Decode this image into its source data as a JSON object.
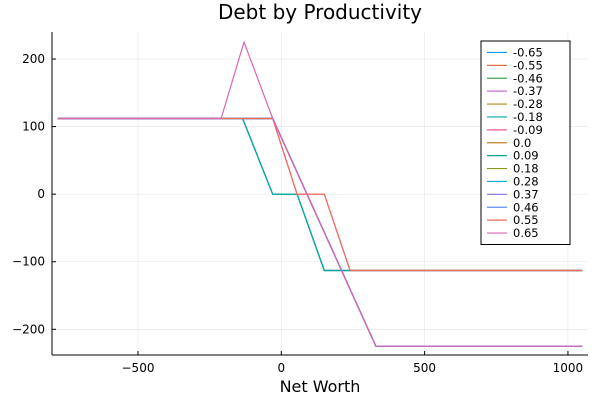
{
  "chart_data": {
    "type": "line",
    "title": "Debt by Productivity",
    "xlabel": "Net Worth",
    "ylabel": "",
    "xlim": [
      -800,
      1070
    ],
    "ylim": [
      -238,
      240
    ],
    "xticks": [
      -500,
      0,
      500,
      1000
    ],
    "xtick_labels": [
      "−500",
      "0",
      "500",
      "1000"
    ],
    "yticks": [
      -200,
      -100,
      0,
      100,
      200
    ],
    "ytick_labels": [
      "−200",
      "−100",
      "0",
      "100",
      "200"
    ],
    "grid": true,
    "legend_position": "top-right",
    "series": [
      {
        "name": "-0.65",
        "color": "#009AFA",
        "x": [
          -780,
          -135,
          -30,
          55,
          150,
          1050
        ],
        "y": [
          112,
          112,
          0,
          0,
          -113,
          -113
        ]
      },
      {
        "name": "-0.55",
        "color": "#E36F47",
        "x": [
          -780,
          -135,
          -30,
          55,
          150,
          1050
        ],
        "y": [
          112,
          112,
          0,
          0,
          -113,
          -113
        ]
      },
      {
        "name": "-0.46",
        "color": "#3EA44E",
        "x": [
          -780,
          -135,
          -30,
          55,
          150,
          1050
        ],
        "y": [
          112,
          112,
          0,
          0,
          -113,
          -113
        ]
      },
      {
        "name": "-0.37",
        "color": "#C371D2",
        "x": [
          -780,
          -30,
          330,
          1050
        ],
        "y": [
          112,
          112,
          -225,
          -225
        ]
      },
      {
        "name": "-0.28",
        "color": "#AC8E18",
        "x": [
          -780,
          -30,
          330,
          1050
        ],
        "y": [
          112,
          112,
          -225,
          -225
        ]
      },
      {
        "name": "-0.18",
        "color": "#00AAAE",
        "x": [
          -780,
          -135,
          -30,
          55,
          150,
          1050
        ],
        "y": [
          112,
          112,
          0,
          0,
          -113,
          -113
        ]
      },
      {
        "name": "-0.09",
        "color": "#ED5E93",
        "x": [
          -780,
          -30,
          55,
          150,
          240,
          1050
        ],
        "y": [
          112,
          112,
          0,
          0,
          -113,
          -113
        ]
      },
      {
        "name": "0.0",
        "color": "#C68225",
        "x": [
          -780,
          -30,
          330,
          1050
        ],
        "y": [
          112,
          112,
          -225,
          -225
        ]
      },
      {
        "name": "0.09",
        "color": "#00A98D",
        "x": [
          -780,
          -30,
          330,
          1050
        ],
        "y": [
          112,
          112,
          -225,
          -225
        ]
      },
      {
        "name": "0.18",
        "color": "#8E971E",
        "x": [
          -780,
          -30,
          330,
          1050
        ],
        "y": [
          112,
          112,
          -225,
          -225
        ]
      },
      {
        "name": "0.28",
        "color": "#00A9CD",
        "x": [
          -780,
          -30,
          330,
          1050
        ],
        "y": [
          112,
          112,
          -225,
          -225
        ]
      },
      {
        "name": "0.37",
        "color": "#9B7FE9",
        "x": [
          -780,
          -30,
          330,
          1050
        ],
        "y": [
          112,
          112,
          -225,
          -225
        ]
      },
      {
        "name": "0.46",
        "color": "#618DF6",
        "x": [
          -780,
          -30,
          330,
          1050
        ],
        "y": [
          112,
          112,
          -225,
          -225
        ]
      },
      {
        "name": "0.55",
        "color": "#F16C5D",
        "x": [
          -780,
          -30,
          55,
          150,
          240,
          1050
        ],
        "y": [
          112,
          112,
          0,
          0,
          -113,
          -113
        ]
      },
      {
        "name": "0.65",
        "color": "#DD64B5",
        "x": [
          -780,
          -210,
          -130,
          -30,
          330,
          1050
        ],
        "y": [
          112,
          112,
          225,
          112,
          -225,
          -225
        ]
      }
    ]
  }
}
